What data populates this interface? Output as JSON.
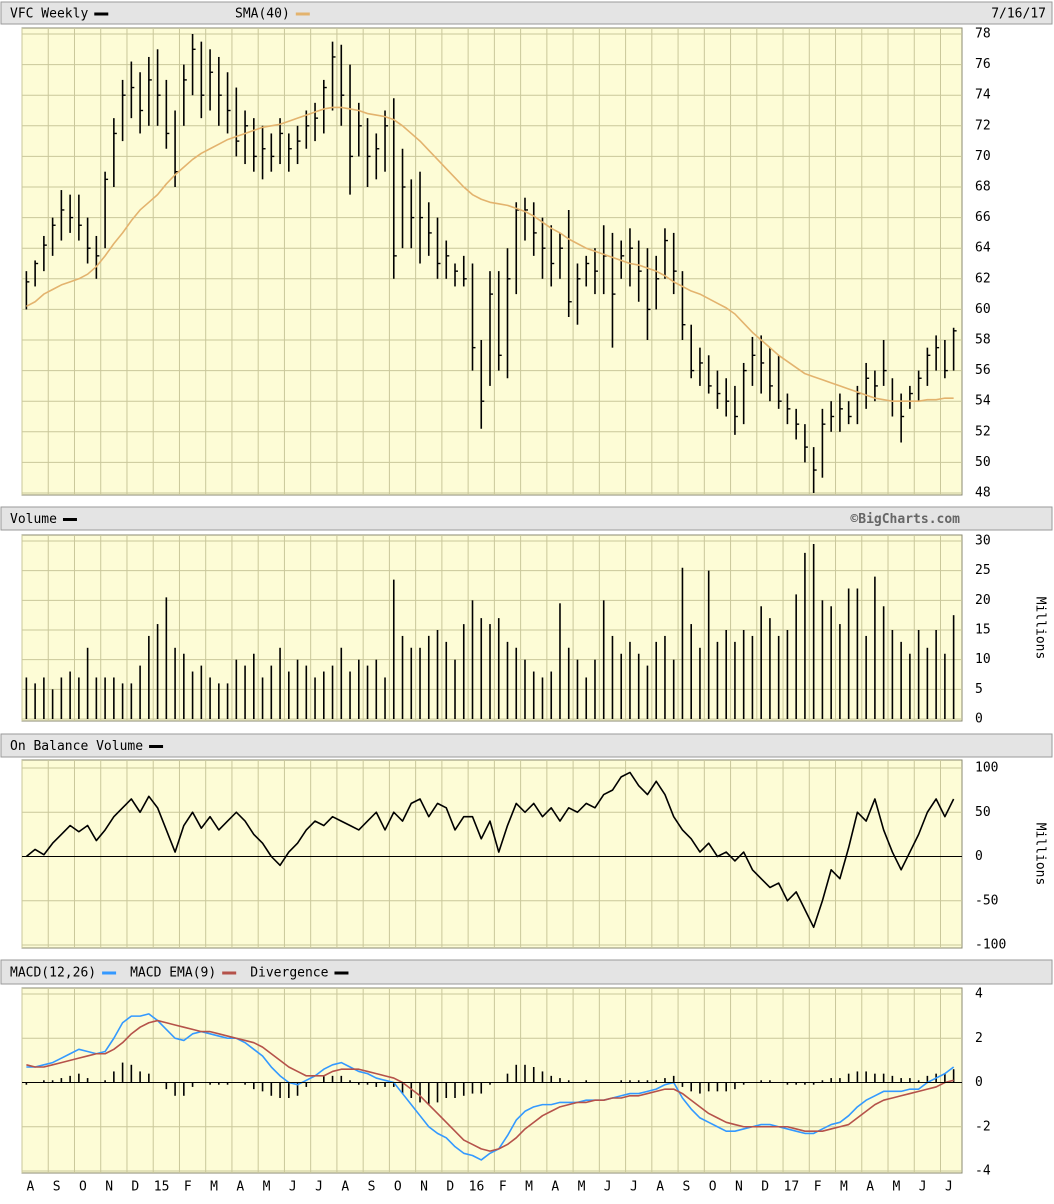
{
  "chart_data": [
    {
      "type": "ohlc",
      "date": "7/16/17",
      "ylim": [
        48,
        78
      ],
      "yticks": [
        48,
        50,
        52,
        54,
        56,
        58,
        60,
        62,
        64,
        66,
        68,
        70,
        72,
        74,
        76,
        78
      ],
      "grid": true,
      "series": [
        {
          "name": "VFC Weekly",
          "color": "#000000",
          "high": [
            62.5,
            63.2,
            64.8,
            66,
            67.8,
            67.5,
            67.5,
            66,
            64.8,
            69,
            72.5,
            75,
            76.2,
            75.5,
            76.5,
            77,
            75,
            73,
            76,
            78,
            77.5,
            77,
            76.5,
            75.5,
            74.5,
            73,
            72.5,
            72,
            71.5,
            72.5,
            71.5,
            72,
            73,
            73.5,
            75,
            77.5,
            77.3,
            76,
            73.5,
            72.5,
            71.5,
            73,
            73.8,
            70.5,
            68.5,
            69,
            67,
            66,
            64.5,
            63,
            63.5,
            63,
            58,
            62.5,
            62.5,
            64,
            67,
            67.3,
            67,
            66,
            65.5,
            65,
            66.5,
            63,
            63.5,
            64,
            65.5,
            65,
            64.5,
            65.3,
            64.5,
            64,
            63.5,
            65.3,
            65,
            62.5,
            59,
            57.5,
            57,
            56,
            55.5,
            55,
            56.5,
            58.2,
            58.3,
            57.5,
            57,
            54.5,
            53.5,
            52.5,
            51,
            53.5,
            54,
            54.5,
            54,
            55,
            56.5,
            56,
            58,
            55.5,
            54.5,
            55,
            56,
            57.5,
            58.3,
            58,
            58.8
          ],
          "low": [
            60,
            61.5,
            62.5,
            63.5,
            64.5,
            65,
            64.5,
            63,
            62,
            64,
            68,
            71,
            72.5,
            71.5,
            72,
            72,
            70.5,
            68,
            72,
            74,
            72.5,
            73,
            72,
            71.5,
            70,
            69.5,
            69,
            68.5,
            69,
            69.5,
            69,
            69.5,
            70.5,
            71,
            71.5,
            73,
            72,
            67.5,
            70,
            68,
            68.5,
            69,
            62,
            64,
            64,
            63,
            63.5,
            62,
            62,
            61.5,
            61.5,
            56,
            52.2,
            55,
            56,
            55.5,
            61,
            64.5,
            63.5,
            62,
            61.5,
            62,
            59.5,
            59,
            61.5,
            61,
            61,
            57.5,
            62,
            61.5,
            60.5,
            58,
            60,
            62,
            61,
            58,
            55.5,
            55,
            54.5,
            53.5,
            53,
            51.8,
            52.5,
            55,
            54.5,
            54,
            53.5,
            52.5,
            51.5,
            50,
            48,
            49,
            52,
            52,
            52.5,
            52.5,
            53.5,
            54,
            55,
            53,
            51.3,
            53.5,
            54,
            55,
            56,
            55.5,
            56
          ],
          "close": [
            61.8,
            63,
            64.2,
            65.5,
            66.5,
            66,
            65.5,
            64,
            63.5,
            68.5,
            71.5,
            74,
            74.5,
            73,
            75,
            74,
            71.5,
            69,
            75,
            77,
            74,
            75.5,
            74,
            73,
            71,
            72,
            70,
            70.5,
            70,
            71.5,
            70.5,
            71,
            72,
            72.5,
            74.5,
            76.5,
            74,
            70,
            72,
            70,
            70.5,
            72,
            63.5,
            68,
            66,
            66,
            65,
            63,
            63.5,
            62.5,
            62,
            57.5,
            54,
            61,
            57,
            62,
            66.5,
            66.5,
            65,
            64,
            63,
            64,
            60.5,
            62,
            63,
            62.5,
            63.5,
            61,
            63.5,
            64,
            62.5,
            60,
            62,
            64.5,
            62.5,
            59,
            56,
            56.5,
            55,
            54.5,
            54,
            53,
            56,
            57,
            56.5,
            55,
            54,
            53.5,
            52.5,
            51,
            49.5,
            52.5,
            53,
            53.5,
            53,
            54.5,
            55.5,
            55,
            56,
            54,
            53,
            54.5,
            55.5,
            57,
            57.5,
            56,
            58.6
          ]
        },
        {
          "name": "SMA(40)",
          "color": "#e3b36e",
          "type": "line",
          "values": [
            60.2,
            60.5,
            61,
            61.3,
            61.6,
            61.8,
            62,
            62.3,
            62.8,
            63.5,
            64.3,
            65,
            65.8,
            66.5,
            67,
            67.5,
            68.2,
            68.8,
            69.3,
            69.8,
            70.2,
            70.5,
            70.8,
            71.1,
            71.3,
            71.5,
            71.7,
            71.9,
            72,
            72.1,
            72.3,
            72.5,
            72.7,
            72.9,
            73.1,
            73.2,
            73.2,
            73.1,
            73,
            72.8,
            72.7,
            72.6,
            72.4,
            72,
            71.5,
            71,
            70.4,
            69.8,
            69.2,
            68.6,
            68,
            67.5,
            67.2,
            67,
            66.9,
            66.8,
            66.6,
            66.4,
            66.1,
            65.7,
            65.3,
            65,
            64.6,
            64.3,
            64,
            63.8,
            63.6,
            63.4,
            63.2,
            63,
            62.9,
            62.7,
            62.5,
            62.2,
            61.8,
            61.5,
            61.2,
            61,
            60.7,
            60.4,
            60.1,
            59.7,
            59.1,
            58.5,
            58,
            57.5,
            57,
            56.6,
            56.2,
            55.8,
            55.6,
            55.4,
            55.2,
            55,
            54.8,
            54.6,
            54.4,
            54.2,
            54.1,
            54,
            54,
            54,
            54,
            54.1,
            54.1,
            54.2,
            54.2
          ]
        }
      ]
    },
    {
      "type": "bar",
      "credit": "©BigCharts.com",
      "y_label": "Millions",
      "ylim": [
        0,
        30
      ],
      "yticks": [
        0,
        5,
        10,
        15,
        20,
        25,
        30
      ],
      "grid": true,
      "series": [
        {
          "name": "Volume",
          "color": "#000000",
          "values": [
            7,
            6,
            7,
            5,
            7,
            8,
            7,
            12,
            7,
            7,
            7,
            6,
            6,
            9,
            14,
            16,
            20.5,
            12,
            11,
            8,
            9,
            7,
            6,
            6,
            10,
            9,
            11,
            7,
            9,
            12,
            8,
            10,
            9,
            7,
            8,
            9,
            12,
            8,
            10,
            9,
            10,
            7,
            23.5,
            14,
            12,
            12,
            14,
            15,
            13,
            10,
            16,
            20,
            17,
            16,
            17,
            13,
            12,
            10,
            8,
            7,
            8,
            19.5,
            12,
            10,
            7,
            10,
            20,
            14,
            11,
            13,
            11,
            9,
            13,
            14,
            10,
            25.5,
            16,
            12,
            25,
            13,
            15,
            13,
            15,
            14,
            19,
            17,
            14,
            15,
            21,
            28,
            29.5,
            20,
            19,
            16,
            22,
            22,
            14,
            24,
            19,
            15,
            13,
            11,
            15,
            12,
            15,
            11,
            17.5
          ]
        }
      ]
    },
    {
      "type": "line",
      "y_label": "Millions",
      "ylim": [
        -100,
        100
      ],
      "yticks": [
        -100,
        -50,
        0,
        50,
        100
      ],
      "grid": true,
      "series": [
        {
          "name": "On Balance Volume",
          "color": "#000000",
          "values": [
            0,
            8,
            2,
            15,
            25,
            35,
            28,
            35,
            18,
            30,
            45,
            55,
            65,
            50,
            68,
            55,
            30,
            5,
            35,
            50,
            32,
            45,
            30,
            40,
            50,
            40,
            25,
            15,
            0,
            -10,
            5,
            15,
            30,
            40,
            35,
            45,
            40,
            35,
            30,
            40,
            50,
            30,
            50,
            40,
            60,
            65,
            45,
            60,
            55,
            30,
            45,
            45,
            20,
            40,
            5,
            35,
            60,
            50,
            60,
            45,
            55,
            40,
            55,
            50,
            60,
            55,
            70,
            75,
            90,
            95,
            80,
            70,
            85,
            70,
            45,
            30,
            20,
            5,
            15,
            0,
            5,
            -5,
            5,
            -15,
            -25,
            -35,
            -30,
            -50,
            -40,
            -60,
            -80,
            -50,
            -15,
            -25,
            10,
            50,
            40,
            65,
            30,
            5,
            -15,
            5,
            25,
            50,
            65,
            45,
            65
          ]
        }
      ]
    },
    {
      "type": "line",
      "ylim": [
        -4,
        4
      ],
      "yticks": [
        -4,
        -2,
        0,
        2,
        4
      ],
      "grid": true,
      "categories": [
        "A",
        null,
        null,
        "S",
        null,
        null,
        "O",
        null,
        null,
        "N",
        null,
        null,
        "D",
        null,
        null,
        "15",
        null,
        null,
        "F",
        null,
        null,
        "M",
        null,
        null,
        "A",
        null,
        null,
        "M",
        null,
        null,
        "J",
        null,
        null,
        "J",
        null,
        null,
        "A",
        null,
        null,
        "S",
        null,
        null,
        "O",
        null,
        null,
        "N",
        null,
        null,
        "D",
        null,
        null,
        "16",
        null,
        null,
        "F",
        null,
        null,
        "M",
        null,
        null,
        "A",
        null,
        null,
        "M",
        null,
        null,
        "J",
        null,
        null,
        "J",
        null,
        null,
        "A",
        null,
        null,
        "S",
        null,
        null,
        "O",
        null,
        null,
        "N",
        null,
        null,
        "D",
        null,
        null,
        "17",
        null,
        null,
        "F",
        null,
        null,
        "M",
        null,
        null,
        "A",
        null,
        null,
        "M",
        null,
        null,
        "J",
        null,
        null,
        "J",
        null
      ],
      "series": [
        {
          "name": "MACD(12,26)",
          "color": "#3399ff",
          "values": [
            0.7,
            0.7,
            0.8,
            0.9,
            1.1,
            1.3,
            1.5,
            1.4,
            1.3,
            1.4,
            2.0,
            2.7,
            3.0,
            3.0,
            3.1,
            2.8,
            2.4,
            2.0,
            1.9,
            2.2,
            2.3,
            2.2,
            2.1,
            2.0,
            2.0,
            1.8,
            1.5,
            1.2,
            0.7,
            0.3,
            0.0,
            -0.1,
            0.1,
            0.3,
            0.6,
            0.8,
            0.9,
            0.7,
            0.5,
            0.4,
            0.2,
            0.1,
            0.0,
            -0.5,
            -1.0,
            -1.5,
            -2.0,
            -2.3,
            -2.5,
            -2.9,
            -3.2,
            -3.3,
            -3.5,
            -3.2,
            -3.0,
            -2.4,
            -1.7,
            -1.3,
            -1.1,
            -1.0,
            -1.0,
            -0.9,
            -0.9,
            -0.9,
            -0.8,
            -0.8,
            -0.8,
            -0.7,
            -0.6,
            -0.5,
            -0.5,
            -0.4,
            -0.3,
            -0.1,
            0.0,
            -0.7,
            -1.2,
            -1.6,
            -1.8,
            -2.0,
            -2.2,
            -2.2,
            -2.1,
            -2.0,
            -1.9,
            -1.9,
            -2.0,
            -2.1,
            -2.2,
            -2.3,
            -2.3,
            -2.1,
            -1.9,
            -1.8,
            -1.5,
            -1.1,
            -0.8,
            -0.6,
            -0.4,
            -0.4,
            -0.4,
            -0.3,
            -0.3,
            0.0,
            0.2,
            0.4,
            0.7
          ]
        },
        {
          "name": "MACD EMA(9)",
          "color": "#b5524a",
          "values": [
            0.8,
            0.7,
            0.7,
            0.8,
            0.9,
            1.0,
            1.1,
            1.2,
            1.3,
            1.3,
            1.5,
            1.8,
            2.2,
            2.5,
            2.7,
            2.8,
            2.7,
            2.6,
            2.5,
            2.4,
            2.3,
            2.3,
            2.2,
            2.1,
            2.0,
            1.9,
            1.8,
            1.6,
            1.3,
            1.0,
            0.7,
            0.5,
            0.3,
            0.3,
            0.3,
            0.5,
            0.6,
            0.6,
            0.6,
            0.5,
            0.4,
            0.3,
            0.2,
            0.0,
            -0.3,
            -0.6,
            -1.0,
            -1.4,
            -1.8,
            -2.2,
            -2.6,
            -2.8,
            -3.0,
            -3.1,
            -3.0,
            -2.8,
            -2.5,
            -2.1,
            -1.8,
            -1.5,
            -1.3,
            -1.1,
            -1.0,
            -0.9,
            -0.9,
            -0.8,
            -0.8,
            -0.7,
            -0.7,
            -0.6,
            -0.6,
            -0.5,
            -0.4,
            -0.3,
            -0.3,
            -0.5,
            -0.8,
            -1.1,
            -1.4,
            -1.6,
            -1.8,
            -1.9,
            -2.0,
            -2.0,
            -2.0,
            -2.0,
            -2.0,
            -2.0,
            -2.1,
            -2.2,
            -2.2,
            -2.2,
            -2.1,
            -2.0,
            -1.9,
            -1.6,
            -1.3,
            -1.0,
            -0.8,
            -0.7,
            -0.6,
            -0.5,
            -0.4,
            -0.3,
            -0.2,
            0.0,
            0.1
          ]
        },
        {
          "name": "Divergence",
          "color": "#000000",
          "type": "bar",
          "values": [
            -0.1,
            0,
            0.1,
            0.1,
            0.2,
            0.3,
            0.4,
            0.2,
            0,
            0.1,
            0.5,
            0.9,
            0.8,
            0.5,
            0.4,
            0,
            -0.3,
            -0.6,
            -0.6,
            -0.2,
            0,
            -0.1,
            -0.1,
            -0.1,
            0,
            -0.1,
            -0.3,
            -0.4,
            -0.6,
            -0.7,
            -0.7,
            -0.6,
            -0.2,
            0,
            0.3,
            0.3,
            0.3,
            0.1,
            -0.1,
            -0.1,
            -0.2,
            -0.2,
            -0.2,
            -0.5,
            -0.7,
            -0.9,
            -1.0,
            -0.9,
            -0.7,
            -0.7,
            -0.6,
            -0.5,
            -0.5,
            -0.1,
            0,
            0.4,
            0.8,
            0.8,
            0.7,
            0.5,
            0.3,
            0.2,
            0.1,
            0,
            0.1,
            0,
            0,
            0,
            0.1,
            0.1,
            0.1,
            0.1,
            0.1,
            0.2,
            0.3,
            -0.2,
            -0.4,
            -0.5,
            -0.4,
            -0.4,
            -0.4,
            -0.3,
            -0.1,
            0,
            0.1,
            0.1,
            0,
            -0.1,
            -0.1,
            -0.1,
            -0.1,
            0.1,
            0.2,
            0.2,
            0.4,
            0.5,
            0.5,
            0.4,
            0.4,
            0.3,
            0.2,
            0.2,
            0.1,
            0.3,
            0.4,
            0.4,
            0.6
          ]
        }
      ]
    }
  ]
}
